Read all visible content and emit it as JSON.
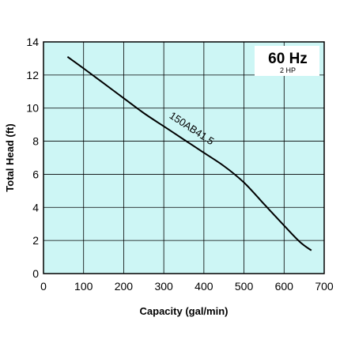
{
  "chart_data": {
    "type": "line",
    "xlabel": "Capacity (gal/min)",
    "ylabel": "Total Head (ft)",
    "xlim": [
      0,
      700
    ],
    "ylim": [
      0,
      14
    ],
    "x_ticks": [
      "0",
      "100",
      "200",
      "300",
      "400",
      "500",
      "600",
      "700"
    ],
    "y_ticks": [
      "0",
      "2",
      "4",
      "6",
      "8",
      "10",
      "12",
      "14"
    ],
    "grid": true,
    "frequency_label": "60 Hz",
    "power_label": "2 HP",
    "series": [
      {
        "name": "150AB41.5",
        "x": [
          60,
          100,
          150,
          200,
          250,
          300,
          350,
          400,
          450,
          500,
          550,
          600,
          640,
          668
        ],
        "y": [
          13.1,
          12.4,
          11.5,
          10.6,
          9.7,
          8.9,
          8.1,
          7.3,
          6.5,
          5.5,
          4.2,
          2.9,
          1.9,
          1.4
        ]
      }
    ],
    "colors": {
      "plot_background": "#cdf6f5",
      "grid": "#000000",
      "line": "#000000"
    }
  }
}
